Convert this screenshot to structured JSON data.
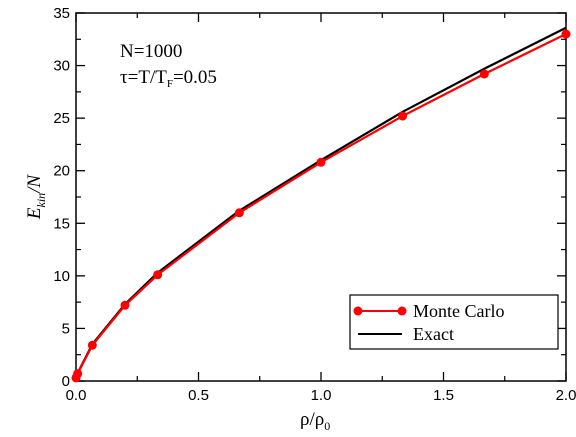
{
  "chart_data": {
    "type": "line",
    "xlabel": "ρ/ρ",
    "xlabel_sub": "0",
    "ylabel": "E",
    "ylabel_sub": "kin",
    "ylabel_tail": "/N",
    "xlim": [
      0.0,
      2.0
    ],
    "ylim": [
      0,
      35
    ],
    "xticks": [
      "0.0",
      "0.5",
      "1.0",
      "1.5",
      "2.0"
    ],
    "yticks": [
      "0",
      "5",
      "10",
      "15",
      "20",
      "25",
      "30",
      "35"
    ],
    "annotations": {
      "line1": "N=1000",
      "line2_prefix": "τ=T/T",
      "line2_sub": "F",
      "line2_suffix": "=0.05"
    },
    "legend_position": "bottom-right",
    "series": [
      {
        "name": "Monte Carlo",
        "color": "#ff0000",
        "marker": "circle",
        "x": [
          0.0,
          0.0067,
          0.0667,
          0.2,
          0.3333,
          0.6667,
          1.0,
          1.3333,
          1.6667,
          2.0
        ],
        "y": [
          0.3,
          0.7,
          3.4,
          7.2,
          10.1,
          16.0,
          20.8,
          25.2,
          29.2,
          33.0
        ]
      },
      {
        "name": "Exact",
        "color": "#000000",
        "marker": "none",
        "x": [
          0.0,
          0.0067,
          0.0667,
          0.2,
          0.3333,
          0.6667,
          1.0,
          1.3333,
          1.6667,
          2.0
        ],
        "y": [
          0.0,
          0.75,
          3.5,
          7.3,
          10.3,
          16.2,
          21.0,
          25.6,
          29.7,
          33.6
        ]
      }
    ]
  }
}
